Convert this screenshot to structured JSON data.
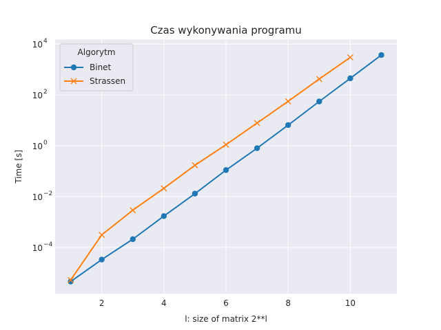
{
  "chart_data": {
    "type": "line",
    "title": "Czas wykonywania programu",
    "xlabel": "l: size of matrix 2**l",
    "ylabel": "Time [s]",
    "xlim": [
      0.5,
      11.5
    ],
    "ylim": [
      1.5e-06,
      15000
    ],
    "yscale": "log",
    "x_ticks": [
      2,
      4,
      6,
      8,
      10
    ],
    "y_ticks": [
      {
        "value": 0.0001,
        "base": "10",
        "exp": "−4"
      },
      {
        "value": 0.01,
        "base": "10",
        "exp": "−2"
      },
      {
        "value": 1,
        "base": "10",
        "exp": "0"
      },
      {
        "value": 100,
        "base": "10",
        "exp": "2"
      },
      {
        "value": 10000,
        "base": "10",
        "exp": "4"
      }
    ],
    "grid": true,
    "legend": {
      "title": "Algorytm",
      "placement": "upper-left"
    },
    "series": [
      {
        "name": "Binet",
        "color": "#1f77b4",
        "marker": "circle",
        "x": [
          1,
          2,
          3,
          4,
          5,
          6,
          7,
          8,
          9,
          10,
          11
        ],
        "y": [
          4.5e-06,
          3.3e-05,
          0.00021,
          0.0017,
          0.013,
          0.11,
          0.8,
          6.5,
          55,
          450,
          3700
        ]
      },
      {
        "name": "Strassen",
        "color": "#ff7f0e",
        "marker": "x",
        "x": [
          1,
          2,
          3,
          4,
          5,
          6,
          7,
          8,
          9,
          10
        ],
        "y": [
          5.2e-06,
          0.00031,
          0.0029,
          0.021,
          0.17,
          1.1,
          7.8,
          56,
          420,
          3000
        ]
      }
    ]
  }
}
